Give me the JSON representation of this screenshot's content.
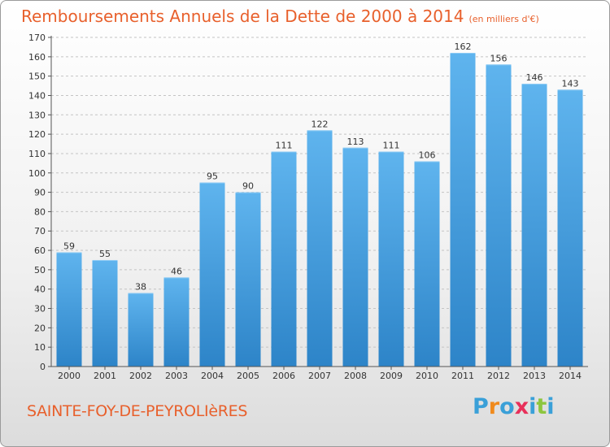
{
  "header": {
    "title": "Remboursements Annuels de la Dette de 2000 à 2014",
    "unit": "(en milliers d'€)"
  },
  "footer": {
    "city": "SAINTE-FOY-DE-PEYROLIèRES",
    "logo": {
      "letters": [
        "P",
        "r",
        "o",
        "x",
        "i",
        "t",
        "i"
      ],
      "colors": [
        "#3aa0d8",
        "#f08a1c",
        "#3aa0d8",
        "#e8305a",
        "#3aa0d8",
        "#8dc63f",
        "#3aa0d8"
      ]
    }
  },
  "chart_data": {
    "type": "bar",
    "title": "Remboursements Annuels de la Dette de 2000 à 2014",
    "xlabel": "",
    "ylabel": "",
    "categories": [
      "2000",
      "2001",
      "2002",
      "2003",
      "2004",
      "2005",
      "2006",
      "2007",
      "2008",
      "2009",
      "2010",
      "2011",
      "2012",
      "2013",
      "2014"
    ],
    "values": [
      59,
      55,
      38,
      46,
      95,
      90,
      111,
      122,
      113,
      111,
      106,
      162,
      156,
      146,
      143
    ],
    "ylim": [
      0,
      170
    ],
    "ytick_step": 10,
    "grid": true,
    "bar_color": "#4ea8e6",
    "bar_color_dark": "#2e88cc"
  }
}
